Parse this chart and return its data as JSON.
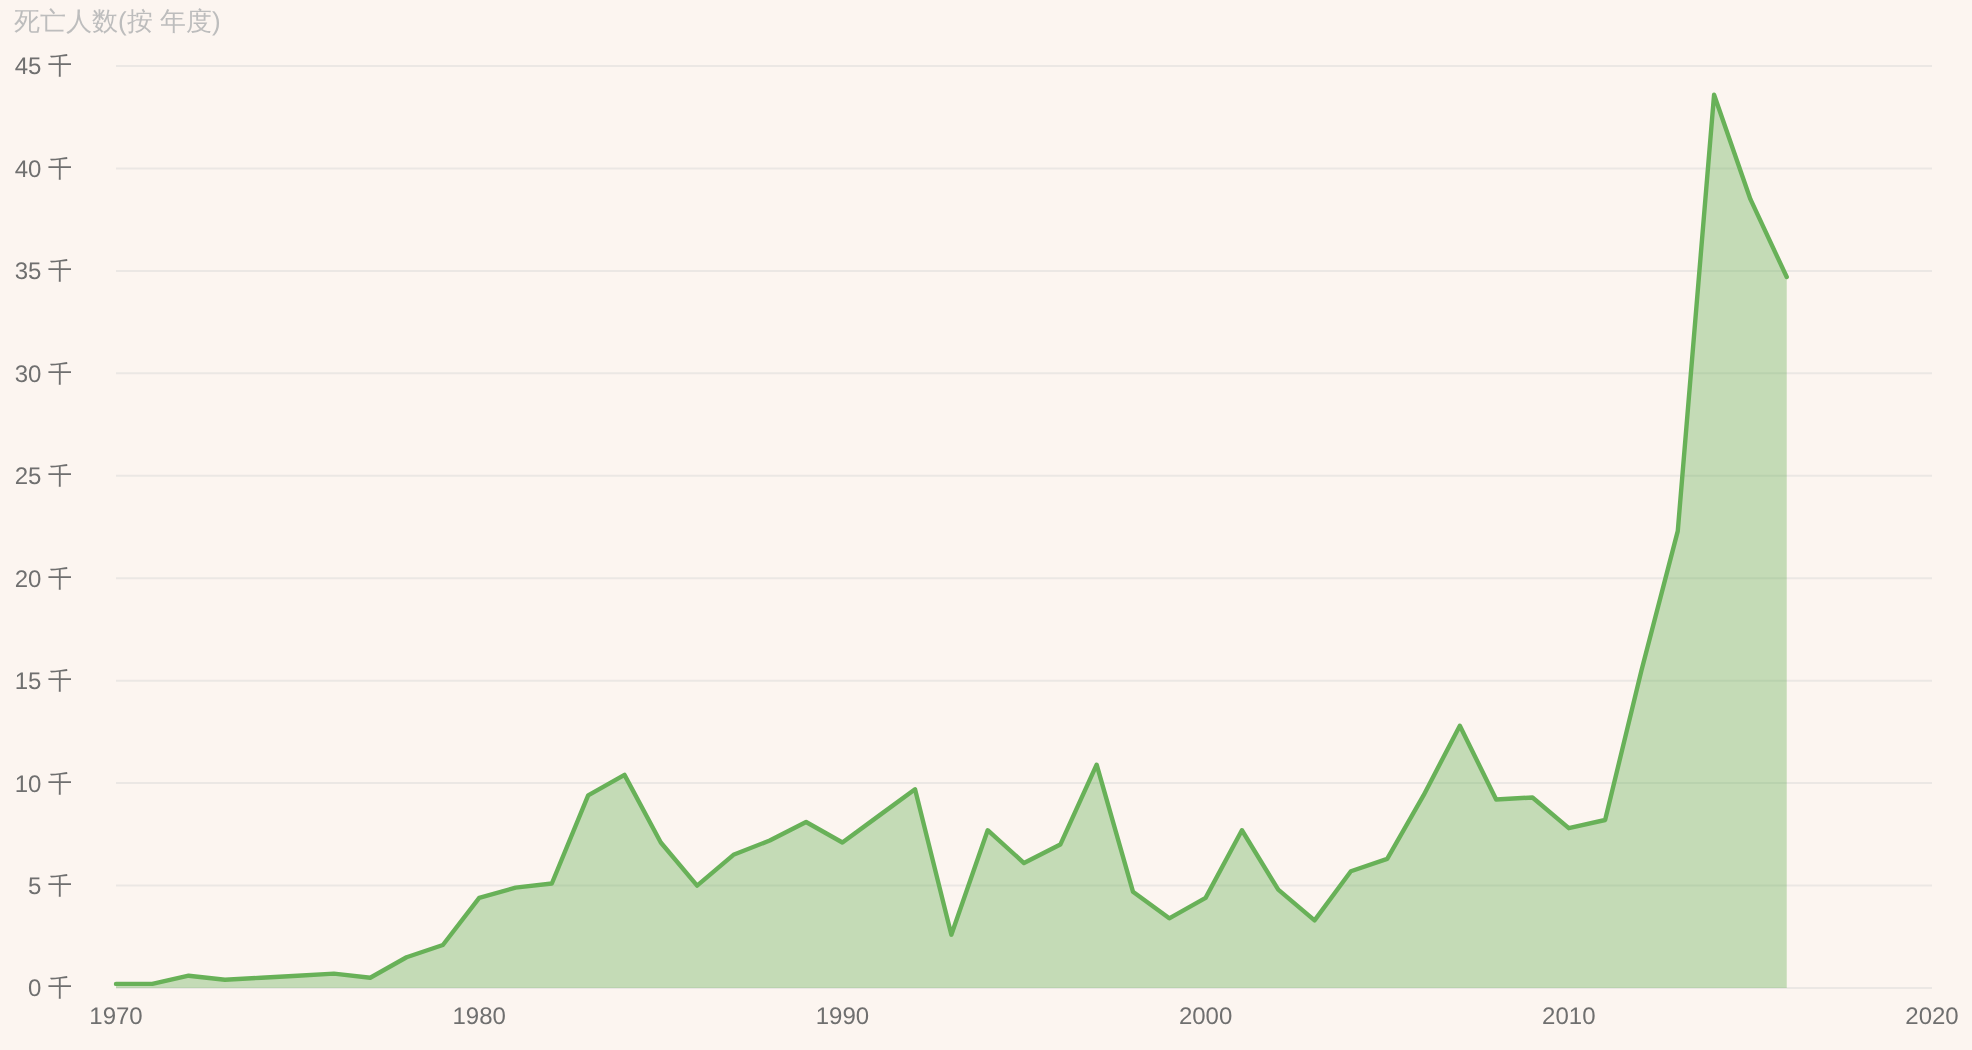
{
  "chart_data": {
    "type": "area",
    "title": "死亡人数(按 年度)",
    "x": [
      1970,
      1971,
      1972,
      1973,
      1974,
      1975,
      1976,
      1977,
      1978,
      1979,
      1980,
      1981,
      1982,
      1983,
      1984,
      1985,
      1986,
      1987,
      1988,
      1989,
      1990,
      1991,
      1992,
      1993,
      1994,
      1995,
      1996,
      1997,
      1998,
      1999,
      2000,
      2001,
      2002,
      2003,
      2004,
      2005,
      2006,
      2007,
      2008,
      2009,
      2010,
      2011,
      2012,
      2013,
      2014,
      2015,
      2016
    ],
    "values": [
      0.2,
      0.2,
      0.6,
      0.4,
      0.5,
      0.6,
      0.7,
      0.5,
      1.5,
      2.1,
      4.4,
      4.9,
      5.1,
      9.4,
      10.4,
      7.1,
      5.0,
      6.5,
      7.2,
      8.1,
      7.1,
      8.4,
      9.7,
      2.6,
      7.7,
      6.1,
      7.0,
      10.9,
      4.7,
      3.4,
      4.4,
      7.7,
      4.8,
      3.3,
      5.7,
      6.3,
      9.4,
      12.8,
      9.2,
      9.3,
      7.8,
      8.2,
      15.5,
      22.3,
      43.6,
      38.5,
      34.7
    ],
    "color": "#68b158",
    "xlim": [
      1970,
      2020
    ],
    "xticks": [
      1970,
      1980,
      1990,
      2000,
      2010,
      2020
    ],
    "ylim": [
      0,
      45
    ],
    "yticks": [
      {
        "value": 0,
        "label": "0 千"
      },
      {
        "value": 5,
        "label": "5 千"
      },
      {
        "value": 10,
        "label": "10 千"
      },
      {
        "value": 15,
        "label": "15 千"
      },
      {
        "value": 20,
        "label": "20 千"
      },
      {
        "value": 25,
        "label": "25 千"
      },
      {
        "value": 30,
        "label": "30 千"
      },
      {
        "value": 35,
        "label": "35 千"
      },
      {
        "value": 40,
        "label": "40 千"
      },
      {
        "value": 45,
        "label": "45 千"
      }
    ],
    "grid": "y"
  }
}
